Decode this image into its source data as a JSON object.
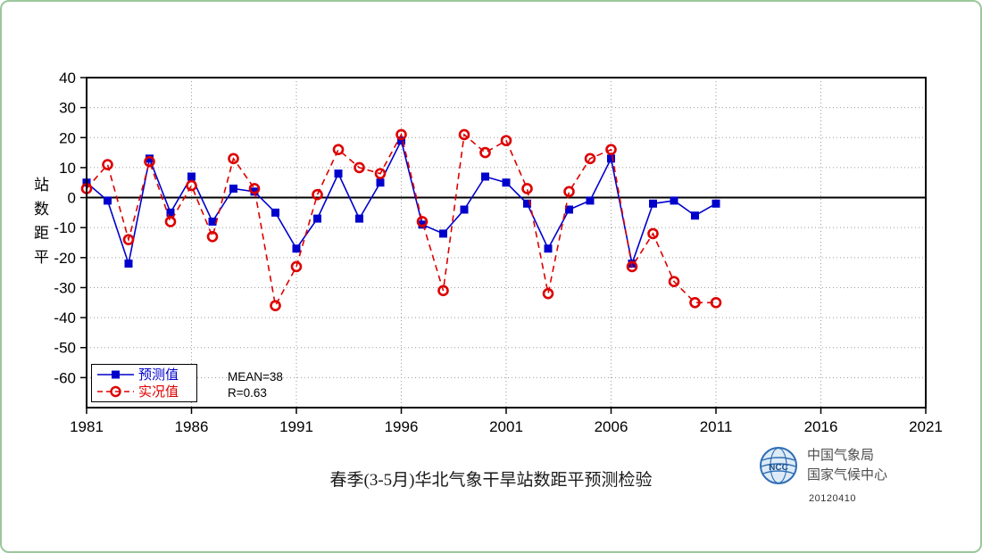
{
  "chart_data": {
    "type": "line",
    "title": "春季(3-5月)华北气象干旱站数距平预测检验",
    "ylabel": "站数距平",
    "xlim": [
      1981,
      2021
    ],
    "ylim": [
      -70,
      40
    ],
    "x_ticks": [
      1981,
      1986,
      1991,
      1996,
      2001,
      2006,
      2011,
      2016,
      2021
    ],
    "y_ticks": [
      40,
      30,
      20,
      10,
      0,
      -10,
      -20,
      -30,
      -40,
      -50,
      -60
    ],
    "grid": true,
    "legend_position": "bottom-left",
    "years": [
      1981,
      1982,
      1983,
      1984,
      1985,
      1986,
      1987,
      1988,
      1989,
      1990,
      1991,
      1992,
      1993,
      1994,
      1995,
      1996,
      1997,
      1998,
      1999,
      2000,
      2001,
      2002,
      2003,
      2004,
      2005,
      2006,
      2007,
      2008,
      2009,
      2010,
      2011
    ],
    "series": [
      {
        "name": "预测值",
        "color": "#0000cc",
        "marker": "square",
        "line": "solid",
        "values": [
          5,
          -1,
          -22,
          13,
          -5,
          7,
          -8,
          3,
          2,
          -5,
          -17,
          -7,
          8,
          -7,
          5,
          19,
          -9,
          -12,
          -4,
          7,
          5,
          -2,
          -17,
          -4,
          -1,
          13,
          -22,
          -2,
          -1,
          -6,
          -2
        ]
      },
      {
        "name": "实况值",
        "color": "#dd0000",
        "marker": "circle-open",
        "line": "dashed",
        "values": [
          3,
          11,
          -14,
          12,
          -8,
          4,
          -13,
          13,
          3,
          -36,
          -23,
          1,
          16,
          10,
          8,
          21,
          -8,
          -31,
          21,
          15,
          19,
          3,
          -32,
          2,
          13,
          16,
          -23,
          -12,
          -28,
          -35,
          -35
        ]
      }
    ],
    "annotations": [
      "MEAN=38",
      "R=0.63"
    ]
  },
  "stats": {
    "mean": "MEAN=38",
    "r": "R=0.63"
  },
  "caption": {
    "title": "春季(3-5月)华北气象干旱站数距平预测检验"
  },
  "branding": {
    "org_line1": "中国气象局",
    "org_line2": "国家气候中心",
    "date": "20120410",
    "logo_text": "NCC"
  },
  "colors": {
    "forecast": "#0000cc",
    "observed": "#dd0000",
    "grid": "#9a9a9a",
    "axis": "#000000",
    "frame_green": "#9bc89b"
  }
}
